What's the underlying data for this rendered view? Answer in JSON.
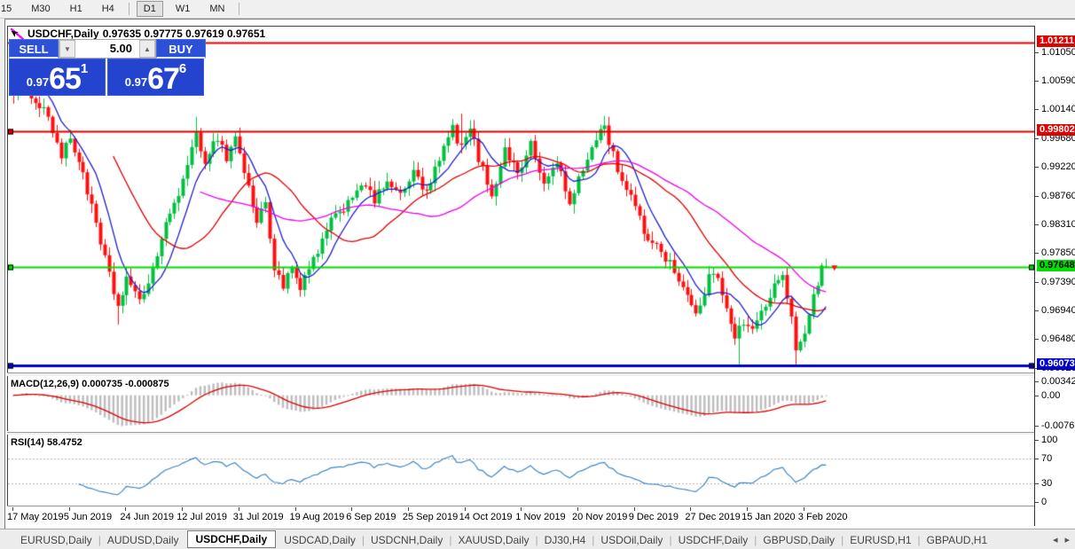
{
  "toolbar": {
    "timeframes": [
      {
        "label": "15",
        "active": false
      },
      {
        "label": "M30",
        "active": false
      },
      {
        "label": "H1",
        "active": false
      },
      {
        "label": "H4",
        "active": false
      },
      {
        "label": "D1",
        "active": true
      },
      {
        "label": "W1",
        "active": false
      },
      {
        "label": "MN",
        "active": false
      }
    ]
  },
  "chart": {
    "symbol": "USDCHF,Daily",
    "ohlc": "0.97635 0.97775 0.97619 0.97651"
  },
  "trade_panel": {
    "sell_label": "SELL",
    "buy_label": "BUY",
    "volume": "5.00",
    "spin_down": "▼",
    "spin_up": "▲",
    "sell_small": "0.97",
    "sell_big": "65",
    "sell_sup": "1",
    "buy_small": "0.97",
    "buy_big": "67",
    "buy_sup": "6"
  },
  "price_axis": {
    "labels": [
      {
        "text": "1.01050",
        "price": 1.0105
      },
      {
        "text": "1.00590",
        "price": 1.0059
      },
      {
        "text": "1.00140",
        "price": 1.0014
      },
      {
        "text": "0.99680",
        "price": 0.9968
      },
      {
        "text": "0.99220",
        "price": 0.9922
      },
      {
        "text": "0.98760",
        "price": 0.9876
      },
      {
        "text": "0.98310",
        "price": 0.9831
      },
      {
        "text": "0.97850",
        "price": 0.9785
      },
      {
        "text": "0.97390",
        "price": 0.9739
      },
      {
        "text": "0.96940",
        "price": 0.9694
      },
      {
        "text": "0.96480",
        "price": 0.9648
      },
      {
        "text": "0.96020",
        "price": 0.9602
      }
    ],
    "badges": [
      {
        "text": "1.01211",
        "price": 1.01211,
        "bg": "#e00000",
        "fg": "#ffffff"
      },
      {
        "text": "0.99802",
        "price": 0.99802,
        "bg": "#e00000",
        "fg": "#ffffff"
      },
      {
        "text": "0.97648",
        "price": 0.97648,
        "bg": "#00e000",
        "fg": "#000000"
      },
      {
        "text": "0.96073",
        "price": 0.96073,
        "bg": "#0000d0",
        "fg": "#ffffff"
      }
    ]
  },
  "macd_panel": {
    "label": "MACD(12,26,9) 0.000735 -0.000875",
    "axis": [
      {
        "text": "0.003428",
        "value": 0.003428
      },
      {
        "text": "0.00",
        "value": 0.0
      },
      {
        "text": "-0.007615",
        "value": -0.007615
      }
    ]
  },
  "rsi_panel": {
    "label": "RSI(14) 58.4752",
    "axis": [
      {
        "text": "100",
        "value": 100
      },
      {
        "text": "70",
        "value": 70
      },
      {
        "text": "30",
        "value": 30
      },
      {
        "text": "0",
        "value": 0
      }
    ]
  },
  "date_axis": [
    "17 May 2019",
    "5 Jun 2019",
    "24 Jun 2019",
    "12 Jul 2019",
    "31 Jul 2019",
    "19 Aug 2019",
    "6 Sep 2019",
    "25 Sep 2019",
    "14 Oct 2019",
    "1 Nov 2019",
    "20 Nov 2019",
    "9 Dec 2019",
    "27 Dec 2019",
    "15 Jan 2020",
    "3 Feb 2020"
  ],
  "tabs": {
    "items": [
      "EURUSD,Daily",
      "AUDUSD,Daily",
      "USDCHF,Daily",
      "USDCAD,Daily",
      "USDCNH,Daily",
      "XAUUSD,Daily",
      "DJ30,H4",
      "USDOil,Daily",
      "USDCHF,Daily",
      "GBPUSD,Daily",
      "EURUSD,H1",
      "GBPAUD,H1"
    ],
    "active_index": 2,
    "scroll_left": "◂",
    "scroll_right": "▸"
  },
  "chart_data": {
    "type": "candlestick",
    "symbol": "USDCHF",
    "timeframe": "Daily",
    "num_candles": 188,
    "price_range": {
      "min": 0.9596,
      "max": 1.0147
    },
    "last_candle": {
      "open": 0.97635,
      "high": 0.97775,
      "low": 0.97619,
      "close": 0.97651
    },
    "close_waypoints": [
      [
        0,
        1.0045
      ],
      [
        2,
        1.0072
      ],
      [
        4,
        1.004
      ],
      [
        8,
        1.0005
      ],
      [
        11,
        0.994
      ],
      [
        13,
        0.9968
      ],
      [
        16,
        0.9915
      ],
      [
        20,
        0.98
      ],
      [
        24,
        0.97
      ],
      [
        26,
        0.9748
      ],
      [
        29,
        0.9705
      ],
      [
        32,
        0.9762
      ],
      [
        36,
        0.985
      ],
      [
        40,
        0.992
      ],
      [
        42,
        0.9975
      ],
      [
        44,
        0.9935
      ],
      [
        47,
        0.9972
      ],
      [
        49,
        0.9938
      ],
      [
        51,
        0.9972
      ],
      [
        54,
        0.989
      ],
      [
        56,
        0.9835
      ],
      [
        58,
        0.9868
      ],
      [
        60,
        0.9762
      ],
      [
        62,
        0.9735
      ],
      [
        64,
        0.976
      ],
      [
        66,
        0.9728
      ],
      [
        69,
        0.9775
      ],
      [
        73,
        0.9835
      ],
      [
        77,
        0.9868
      ],
      [
        80,
        0.99
      ],
      [
        83,
        0.9868
      ],
      [
        86,
        0.9905
      ],
      [
        89,
        0.9875
      ],
      [
        92,
        0.9915
      ],
      [
        95,
        0.988
      ],
      [
        98,
        0.9935
      ],
      [
        101,
        0.9985
      ],
      [
        103,
        0.9952
      ],
      [
        105,
        0.9985
      ],
      [
        107,
        0.9938
      ],
      [
        110,
        0.988
      ],
      [
        113,
        0.995
      ],
      [
        116,
        0.9915
      ],
      [
        119,
        0.9958
      ],
      [
        122,
        0.9895
      ],
      [
        125,
        0.9935
      ],
      [
        128,
        0.9862
      ],
      [
        131,
        0.992
      ],
      [
        134,
        0.9972
      ],
      [
        136,
        0.9988
      ],
      [
        139,
        0.992
      ],
      [
        142,
        0.9875
      ],
      [
        145,
        0.982
      ],
      [
        148,
        0.9798
      ],
      [
        151,
        0.9772
      ],
      [
        154,
        0.9732
      ],
      [
        157,
        0.9686
      ],
      [
        160,
        0.9745
      ],
      [
        162,
        0.9752
      ],
      [
        164,
        0.97
      ],
      [
        166,
        0.9658
      ],
      [
        168,
        0.9672
      ],
      [
        170,
        0.9664
      ],
      [
        172,
        0.969
      ],
      [
        175,
        0.9735
      ],
      [
        177,
        0.9745
      ],
      [
        179,
        0.968
      ],
      [
        180,
        0.9635
      ],
      [
        182,
        0.9662
      ],
      [
        184,
        0.9722
      ],
      [
        186,
        0.976
      ],
      [
        187,
        0.97651
      ]
    ],
    "wick_events": [
      {
        "i": 24,
        "low": 0.0015
      },
      {
        "i": 42,
        "high": 0.0018
      },
      {
        "i": 103,
        "high": 0.0036
      },
      {
        "i": 136,
        "high": 0.0012
      },
      {
        "i": 167,
        "low": 0.004
      },
      {
        "i": 180,
        "low": 0.0022
      }
    ],
    "levels": [
      {
        "price": 1.01211,
        "color": "#e00000",
        "width": 2,
        "handles": "none"
      },
      {
        "price": 0.99802,
        "color": "#e00000",
        "width": 2,
        "handles": "left"
      },
      {
        "price": 0.97648,
        "color": "#00dd00",
        "width": 2,
        "handles": "both"
      },
      {
        "price": 0.96073,
        "color": "#0000d0",
        "width": 3,
        "handles": "both"
      }
    ],
    "moving_averages": [
      {
        "period": 8,
        "color": "#2020cc"
      },
      {
        "period": 24,
        "color": "#dd0000"
      },
      {
        "period": 44,
        "color": "#ee00ee"
      }
    ],
    "macd": {
      "fast": 12,
      "slow": 26,
      "signal": 9,
      "range_max": 0.0042,
      "range_min": -0.0086
    },
    "rsi": {
      "period": 14,
      "levels": [
        70,
        30
      ]
    },
    "colors": {
      "up": "#00c040",
      "down": "#ff1010",
      "macd_hist": "#bdbdbd",
      "macd_signal": "#dd0000",
      "rsi_line": "#3a87c8"
    }
  }
}
